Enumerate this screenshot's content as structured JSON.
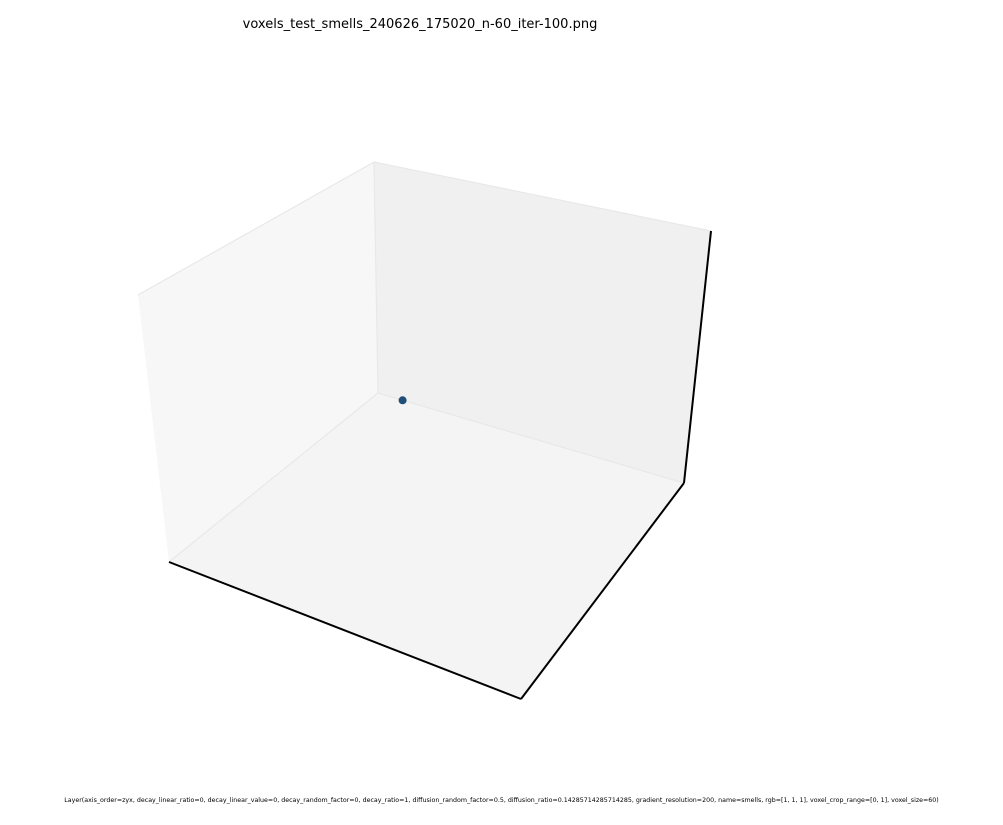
{
  "chart_data": {
    "type": "scatter",
    "title": "voxels_test_smells_240626_175020_n-60_iter-100.png",
    "xlabel": "",
    "ylabel": "",
    "zlabel": "",
    "axes_visible": false,
    "grid": false,
    "projection": "3d",
    "series": [
      {
        "color": "#1f4e79",
        "points": [
          {
            "x": 0.5,
            "y": 0.5,
            "z": 0.5
          }
        ]
      }
    ]
  },
  "footer": {
    "text": "Layer(axis_order=zyx, decay_linear_ratio=0, decay_linear_value=0, decay_random_factor=0, decay_ratio=1, diffusion_random_factor=0.5, diffusion_ratio=0.14285714285714285, gradient_resolution=200, name=smells, rgb=[1, 1, 1], voxel_crop_range=[0, 1], voxel_size=60)"
  },
  "colors": {
    "pane_back": "#f0f0f0",
    "pane_left": "#f7f7f7",
    "pane_floor": "#f4f4f4",
    "pane_edge": "#e8e8e8",
    "axis_line": "#000000"
  }
}
